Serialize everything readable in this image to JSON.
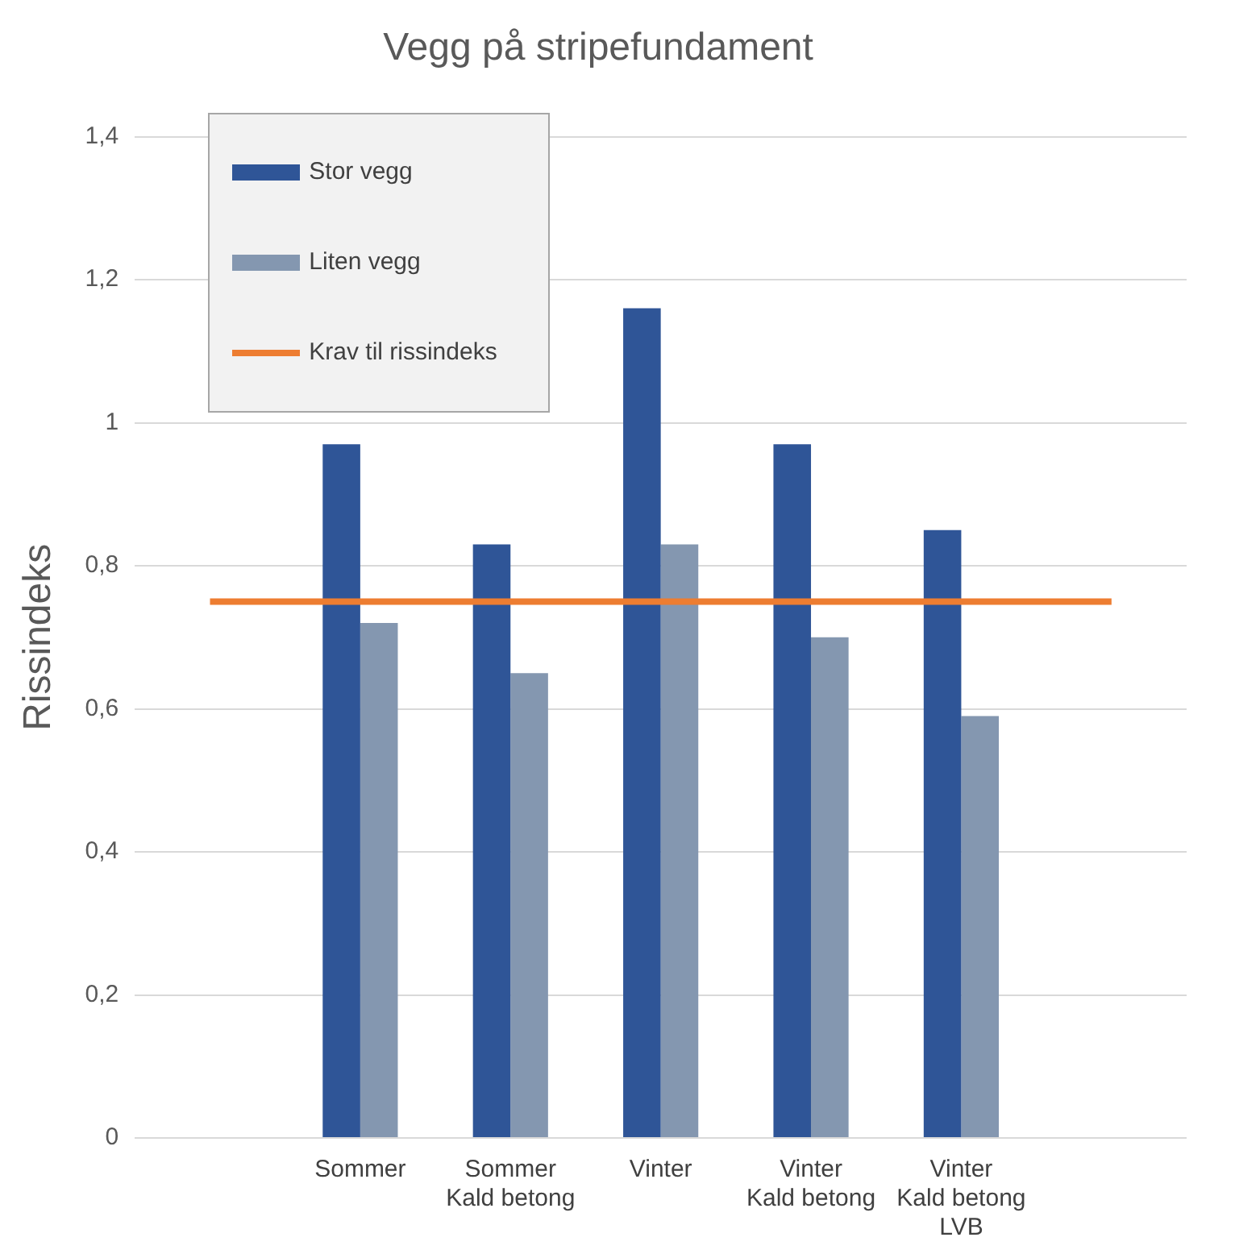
{
  "chart_data": {
    "type": "bar",
    "title": "Vegg på stripefundament",
    "ylabel": "Rissindeks",
    "categories": [
      null,
      "Sommer",
      "Sommer\nKald betong",
      "Vinter",
      "Vinter\nKald betong",
      "Vinter\nKald betong\nLVB",
      null
    ],
    "series": [
      {
        "name": "Stor vegg",
        "color": "#2f5597",
        "values": [
          null,
          0.97,
          0.83,
          1.16,
          0.97,
          0.85,
          null
        ]
      },
      {
        "name": "Liten vegg",
        "color": "#8497b0",
        "values": [
          null,
          0.72,
          0.65,
          0.83,
          0.7,
          0.59,
          null
        ]
      },
      {
        "name": "Krav til rissindeks",
        "type": "line",
        "color": "#ed7d31",
        "values": [
          0.75,
          0.75,
          0.75,
          0.75,
          0.75,
          0.75,
          0.75
        ]
      }
    ],
    "ylim": [
      0,
      1.4
    ],
    "yticks": [
      0,
      {
        "value": 0.2,
        "label": "0,2"
      },
      {
        "value": 0.4,
        "label": "0,4"
      },
      {
        "value": 0.6,
        "label": "0,6"
      },
      {
        "value": 0.8,
        "label": "0,8"
      },
      1,
      {
        "value": 1.2,
        "label": "1,2"
      },
      {
        "value": 1.4,
        "label": "1,4"
      }
    ],
    "grid": "y",
    "legend": "top left",
    "marker": "none"
  }
}
